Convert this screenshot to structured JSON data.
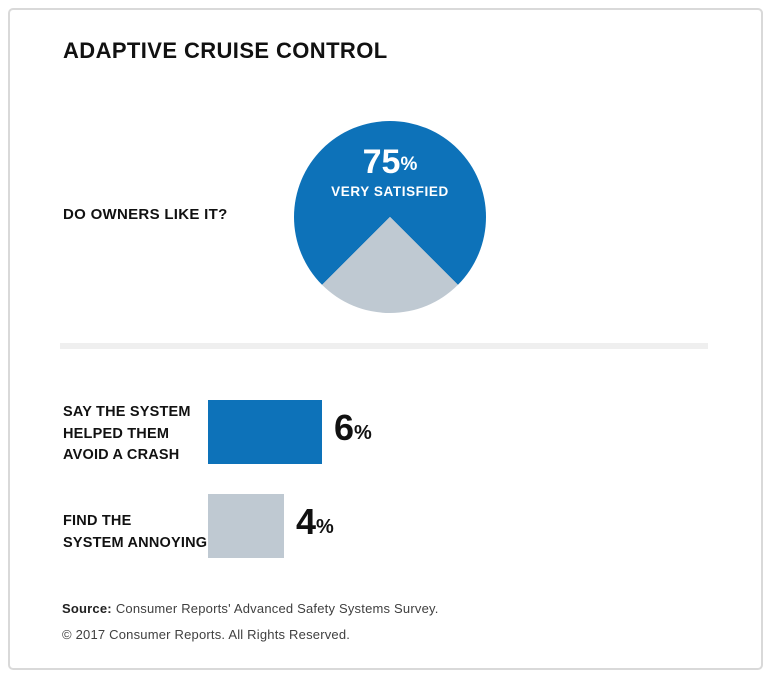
{
  "title": "ADAPTIVE CRUISE CONTROL",
  "pie_section": {
    "question": "DO OWNERS LIKE IT?",
    "value": "75",
    "percent_sign": "%",
    "sublabel": "VERY SATISFIED"
  },
  "bars_section": {
    "rows": [
      {
        "label_lines": {
          "0": "SAY THE SYSTEM",
          "1": "HELPED THEM",
          "2": "AVOID A CRASH"
        },
        "value_label": "6",
        "percent_sign": "%"
      },
      {
        "label_lines": {
          "0": "FIND THE",
          "1": "SYSTEM ANNOYING"
        },
        "value_label": "4",
        "percent_sign": "%"
      }
    ]
  },
  "footer": {
    "source_label": "Source:",
    "source_text": "Consumer Reports' Advanced Safety Systems Survey.",
    "copyright": "© 2017 Consumer Reports. All Rights Reserved."
  },
  "colors": {
    "blue": "#0d72b9",
    "gray": "#bfc9d2",
    "divider": "#efefef",
    "frame_border": "#d9d9d9"
  },
  "chart_data": [
    {
      "type": "pie",
      "title": "DO OWNERS LIKE IT?",
      "slices": [
        {
          "label": "VERY SATISFIED",
          "value": 75,
          "color": "#0d72b9"
        },
        {
          "label": "remainder (unlabeled)",
          "value": 25,
          "color": "#bfc9d2"
        }
      ],
      "annotations": [
        "75% VERY SATISFIED"
      ],
      "notes": "25% gray wedge centered at bottom of circle"
    },
    {
      "type": "bar",
      "orientation": "horizontal",
      "categories": [
        "SAY THE SYSTEM HELPED THEM AVOID A CRASH",
        "FIND THE SYSTEM ANNOYING"
      ],
      "values": [
        6,
        4
      ],
      "colors": [
        "#0d72b9",
        "#bfc9d2"
      ],
      "unit": "%",
      "xlim": [
        0,
        6
      ]
    }
  ]
}
